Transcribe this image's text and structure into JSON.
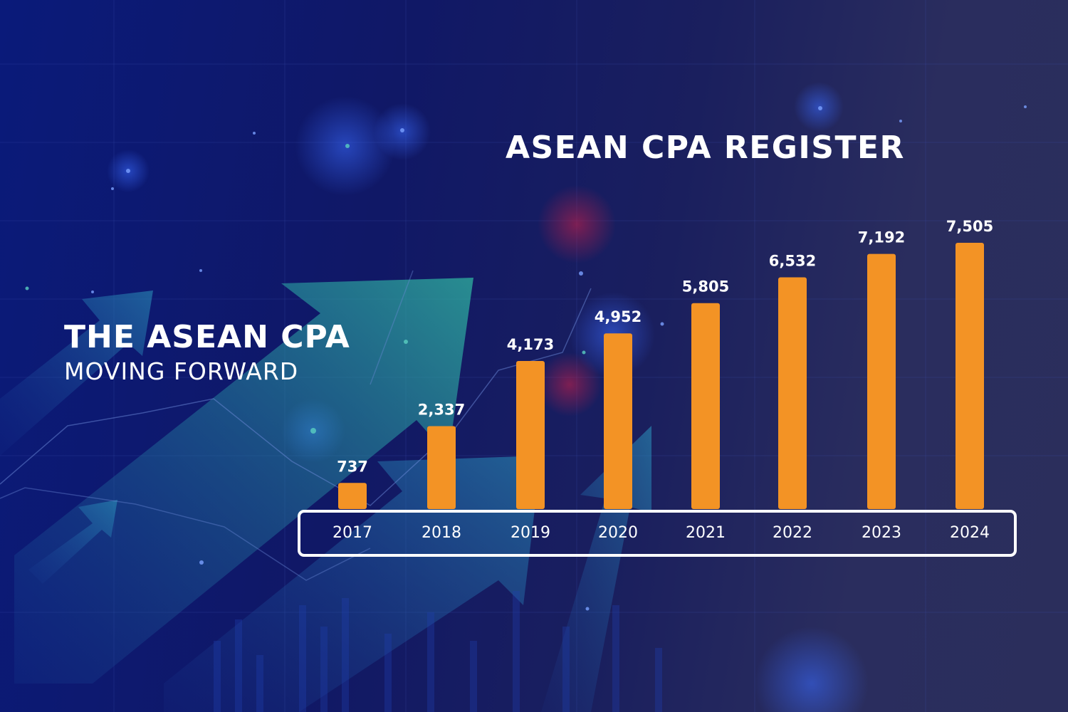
{
  "headline": {
    "title": "THE ASEAN CPA",
    "subtitle": "MOVING FORWARD"
  },
  "colors": {
    "bar": "#f39325",
    "text": "#ffffff",
    "background": "#101866"
  },
  "chart_data": {
    "type": "bar",
    "title": "ASEAN CPA REGISTER",
    "xlabel": "",
    "ylabel": "",
    "categories": [
      "2017",
      "2018",
      "2019",
      "2020",
      "2021",
      "2022",
      "2023",
      "2024"
    ],
    "values": [
      737,
      2337,
      4173,
      4952,
      5805,
      6532,
      7192,
      7505
    ],
    "value_labels": [
      "737",
      "2,337",
      "4,173",
      "4,952",
      "5,805",
      "6,532",
      "7,192",
      "7,505"
    ],
    "ylim": [
      0,
      7505
    ],
    "grid": false,
    "legend": "none"
  }
}
